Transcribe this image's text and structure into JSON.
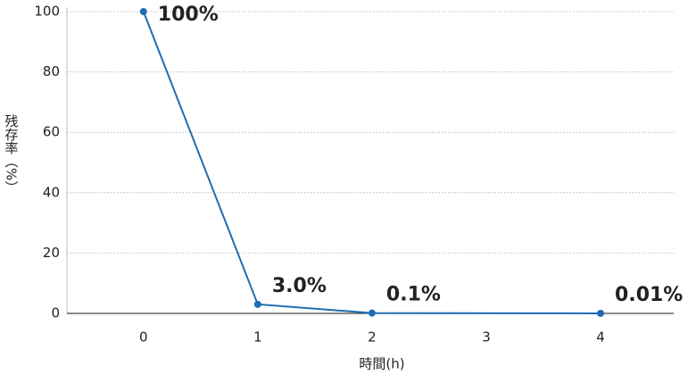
{
  "chart_data": {
    "type": "line",
    "x": [
      0,
      1,
      2,
      4
    ],
    "series": [
      {
        "color": "#1f6db4",
        "values": [
          100,
          3.0,
          0.1,
          0.01
        ],
        "value_labels": [
          "100%",
          "3.0%",
          "0.1%",
          "0.01%"
        ]
      }
    ],
    "xlabel": "時間(h)",
    "ylabel": "残存率（%）",
    "xlim": [
      -0.67,
      4.64
    ],
    "xticks": [
      0,
      1,
      2,
      3,
      4
    ],
    "ylim": [
      0,
      100
    ],
    "yticks": [
      0,
      20,
      40,
      60,
      80,
      100
    ],
    "grid": true
  }
}
